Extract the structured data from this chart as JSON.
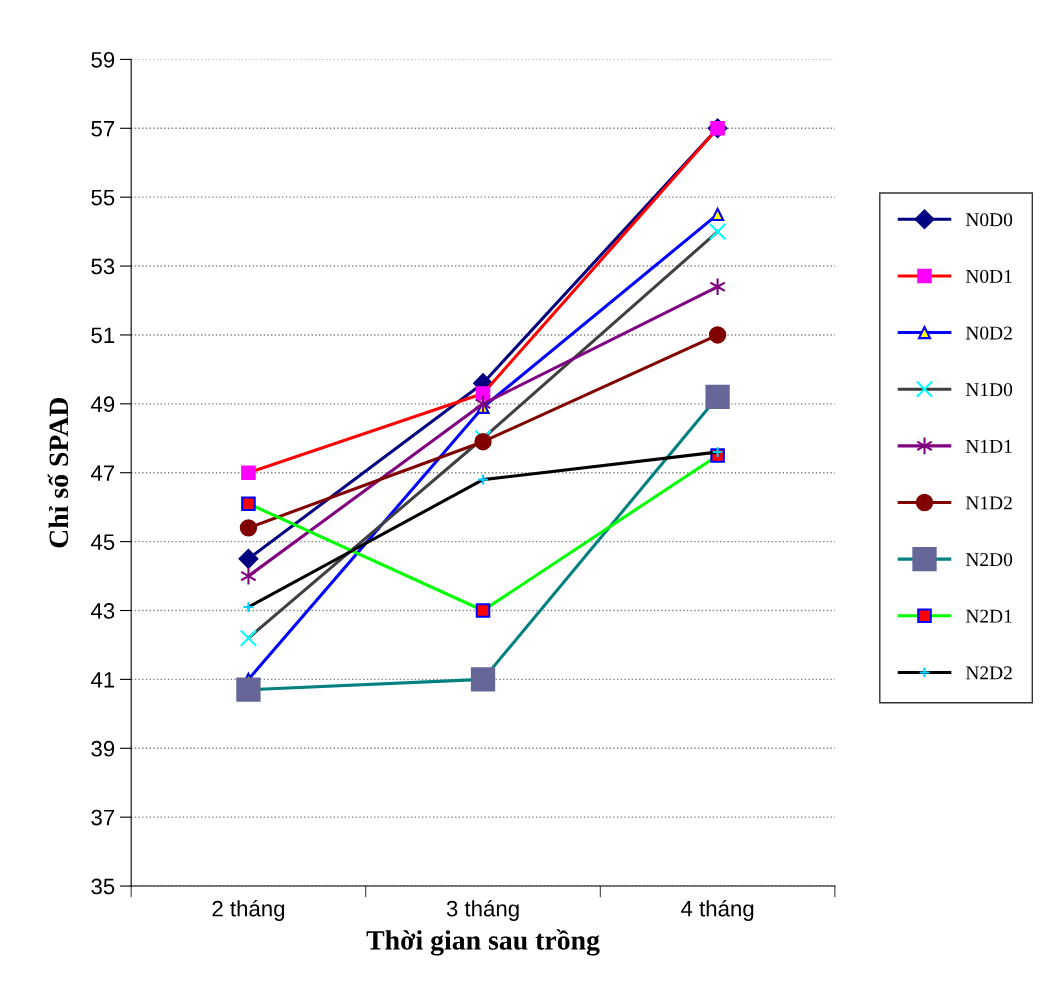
{
  "chart_data": {
    "type": "line",
    "xlabel": "Thời gian sau trồng",
    "ylabel": "Chỉ số SPAD",
    "categories": [
      "2 tháng",
      "3 tháng",
      "4 tháng"
    ],
    "ylim": [
      35,
      59
    ],
    "yticks": [
      35,
      37,
      39,
      41,
      43,
      45,
      47,
      49,
      51,
      53,
      55,
      57,
      59
    ],
    "grid": "y",
    "legend": "right",
    "line_style": "solid",
    "series": [
      {
        "name": "N0D0",
        "color": "#000080",
        "marker": "diamond",
        "values": [
          44.5,
          49.6,
          57.0
        ]
      },
      {
        "name": "N0D1",
        "color": "#ff0000",
        "marker": "square",
        "values": [
          47.0,
          49.3,
          57.0
        ]
      },
      {
        "name": "N0D2",
        "color": "#0000ff",
        "marker": "triangle",
        "values": [
          41.0,
          48.9,
          54.5
        ]
      },
      {
        "name": "N1D0",
        "color": "#404040",
        "marker": "cross",
        "values": [
          42.2,
          48.0,
          54.0
        ]
      },
      {
        "name": "N1D1",
        "color": "#800080",
        "marker": "cross",
        "values": [
          44.0,
          49.0,
          52.4
        ]
      },
      {
        "name": "N1D2",
        "color": "#800000",
        "marker": "circle",
        "values": [
          45.4,
          47.9,
          51.0
        ]
      },
      {
        "name": "N2D0",
        "color": "#008080",
        "marker": "square",
        "values": [
          40.7,
          41.0,
          49.2
        ]
      },
      {
        "name": "N2D1",
        "color": "#00ff00",
        "marker": "square",
        "values": [
          46.1,
          43.0,
          47.5
        ]
      },
      {
        "name": "N2D2",
        "color": "#000000",
        "marker": "cross",
        "values": [
          43.1,
          46.8,
          47.6
        ]
      }
    ]
  }
}
